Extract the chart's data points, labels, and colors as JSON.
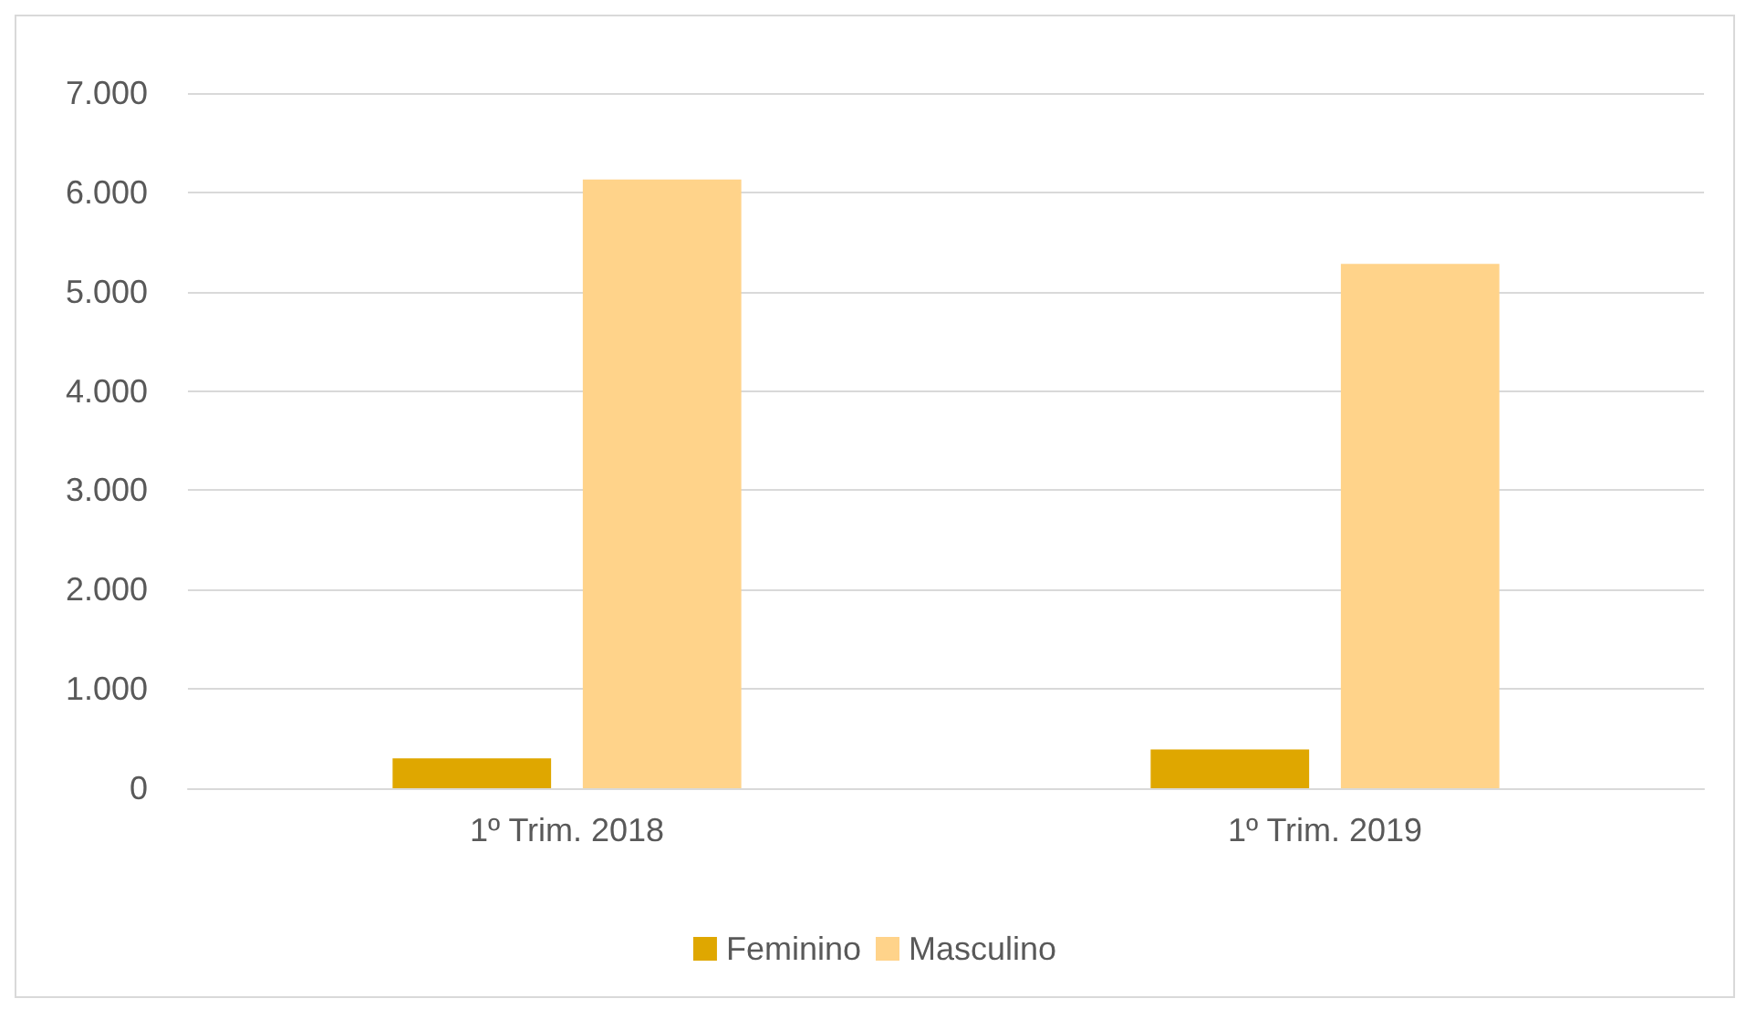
{
  "chart_data": {
    "type": "bar",
    "categories": [
      "1º Trim. 2018",
      "1º Trim. 2019"
    ],
    "series": [
      {
        "name": "Feminino",
        "color": "#dfa700",
        "values": [
          300,
          390
        ]
      },
      {
        "name": "Masculino",
        "color": "#ffd38a",
        "values": [
          6130,
          5280
        ]
      }
    ],
    "ylim": [
      0,
      7000
    ],
    "yticks": [
      0,
      {
        "value": 1000,
        "label": "1.000"
      },
      {
        "value": 2000,
        "label": "2.000"
      },
      {
        "value": 3000,
        "label": "3.000"
      },
      {
        "value": 4000,
        "label": "4.000"
      },
      {
        "value": 5000,
        "label": "5.000"
      },
      {
        "value": 6000,
        "label": "6.000"
      },
      {
        "value": 7000,
        "label": "7.000"
      }
    ],
    "grid": "y",
    "legend": "bottom"
  }
}
